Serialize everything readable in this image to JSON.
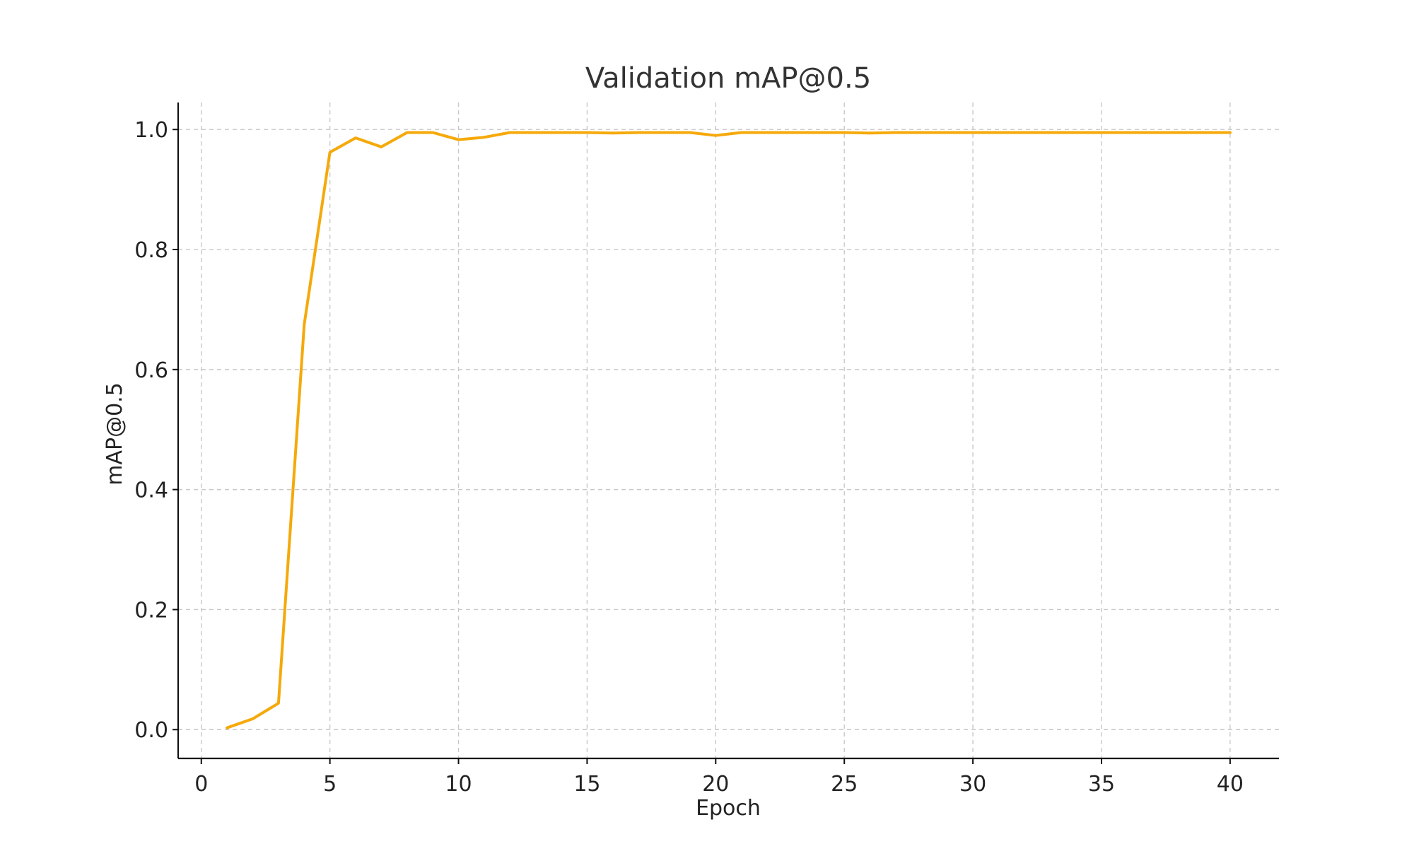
{
  "chart_data": {
    "type": "line",
    "title": "Validation mAP@0.5",
    "xlabel": "Epoch",
    "ylabel": "mAP@0.5",
    "xlim": [
      -0.9,
      41.9
    ],
    "ylim": [
      -0.048,
      1.045
    ],
    "x_ticks": [
      0,
      5,
      10,
      15,
      20,
      25,
      30,
      35,
      40
    ],
    "y_ticks": [
      0.0,
      0.2,
      0.4,
      0.6,
      0.8,
      1.0
    ],
    "x_tick_labels": [
      "0",
      "5",
      "10",
      "15",
      "20",
      "25",
      "30",
      "35",
      "40"
    ],
    "y_tick_labels": [
      "0.0",
      "0.2",
      "0.4",
      "0.6",
      "0.8",
      "1.0"
    ],
    "grid": true,
    "legend": "none",
    "series": [
      {
        "color": "#f5a90a",
        "x": [
          1,
          2,
          3,
          4,
          5,
          6,
          7,
          8,
          9,
          10,
          11,
          12,
          13,
          14,
          15,
          16,
          17,
          18,
          19,
          20,
          21,
          22,
          23,
          24,
          25,
          26,
          27,
          28,
          29,
          30,
          31,
          32,
          33,
          34,
          35,
          36,
          37,
          38,
          39,
          40
        ],
        "y": [
          0.003,
          0.018,
          0.044,
          0.675,
          0.962,
          0.986,
          0.971,
          0.995,
          0.995,
          0.983,
          0.987,
          0.995,
          0.995,
          0.995,
          0.995,
          0.994,
          0.995,
          0.995,
          0.995,
          0.99,
          0.995,
          0.995,
          0.995,
          0.995,
          0.995,
          0.994,
          0.995,
          0.995,
          0.995,
          0.995,
          0.995,
          0.995,
          0.995,
          0.995,
          0.995,
          0.995,
          0.995,
          0.995,
          0.995,
          0.995
        ]
      }
    ]
  }
}
